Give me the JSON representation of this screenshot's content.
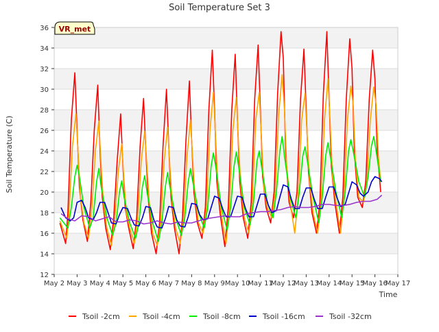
{
  "chart_data": {
    "type": "line",
    "title": "Soil Temperature Set 3",
    "xlabel": "Time",
    "ylabel": "Soil Temperature (C)",
    "site_label": "VR_met",
    "xlim": [
      2,
      17
    ],
    "ylim": [
      12,
      36
    ],
    "x_ticks": [
      {
        "x": 2,
        "label": "May 2"
      },
      {
        "x": 3,
        "label": "May 3"
      },
      {
        "x": 4,
        "label": "May 4"
      },
      {
        "x": 5,
        "label": "May 5"
      },
      {
        "x": 6,
        "label": "May 6"
      },
      {
        "x": 7,
        "label": "May 7"
      },
      {
        "x": 8,
        "label": "May 8"
      },
      {
        "x": 9,
        "label": "May 9"
      },
      {
        "x": 10,
        "label": "May 10"
      },
      {
        "x": 11,
        "label": "May 11"
      },
      {
        "x": 12,
        "label": "May 12"
      },
      {
        "x": 13,
        "label": "May 13"
      },
      {
        "x": 14,
        "label": "May 14"
      },
      {
        "x": 15,
        "label": "May 15"
      },
      {
        "x": 16,
        "label": "May 16"
      },
      {
        "x": 17,
        "label": "May 17"
      }
    ],
    "y_ticks": [
      12,
      14,
      16,
      18,
      20,
      22,
      24,
      26,
      28,
      30,
      32,
      34,
      36
    ],
    "grid": "horizontal bands",
    "legend_position": "bottom",
    "series": [
      {
        "name": "Tsoil -2cm",
        "color": "#ff0000",
        "x": [
          2.25,
          2.5,
          2.6,
          2.75,
          2.9,
          3.0,
          3.1,
          3.25,
          3.45,
          3.6,
          3.75,
          3.9,
          4.0,
          4.1,
          4.25,
          4.45,
          4.6,
          4.75,
          4.9,
          5.0,
          5.1,
          5.25,
          5.45,
          5.6,
          5.75,
          5.9,
          6.0,
          6.1,
          6.25,
          6.45,
          6.6,
          6.75,
          6.9,
          7.0,
          7.1,
          7.25,
          7.45,
          7.6,
          7.75,
          7.9,
          8.0,
          8.1,
          8.25,
          8.45,
          8.6,
          8.75,
          8.9,
          9.0,
          9.1,
          9.25,
          9.45,
          9.6,
          9.75,
          9.9,
          10.0,
          10.1,
          10.25,
          10.45,
          10.6,
          10.75,
          10.9,
          11.0,
          11.1,
          11.25,
          11.45,
          11.6,
          11.75,
          11.9,
          12.0,
          12.1,
          12.25,
          12.45,
          12.6,
          12.75,
          12.9,
          13.0,
          13.1,
          13.25,
          13.45,
          13.6,
          13.75,
          13.9,
          14.0,
          14.1,
          14.25,
          14.45,
          14.6,
          14.75,
          14.9,
          15.0,
          15.1,
          15.25,
          15.45,
          15.6,
          15.75,
          15.9,
          16.0,
          16.1,
          16.25
        ],
        "y": [
          17.0,
          15.0,
          18.0,
          27.0,
          31.6,
          26.0,
          20.5,
          17.3,
          15.2,
          19.0,
          26.0,
          30.4,
          24.0,
          19.5,
          16.5,
          14.4,
          17.5,
          23.0,
          27.6,
          22.5,
          18.5,
          16.5,
          14.5,
          17.5,
          24.5,
          29.1,
          24.0,
          19.5,
          16.0,
          14.0,
          17.0,
          24.5,
          30.0,
          24.5,
          19.5,
          16.5,
          14.0,
          17.5,
          25.0,
          30.8,
          25.0,
          20.0,
          17.0,
          15.5,
          18.5,
          28.0,
          33.8,
          28.0,
          21.0,
          17.8,
          14.7,
          18.5,
          28.0,
          33.4,
          27.0,
          21.0,
          17.5,
          15.5,
          19.0,
          29.0,
          34.3,
          28.0,
          21.5,
          18.5,
          17.0,
          20.0,
          29.5,
          35.6,
          33.0,
          24.0,
          19.0,
          17.5,
          20.0,
          29.0,
          33.9,
          28.0,
          22.0,
          18.0,
          16.0,
          19.0,
          29.5,
          35.6,
          29.0,
          22.5,
          19.0,
          16.0,
          19.5,
          29.0,
          34.9,
          32.0,
          24.0,
          19.5,
          18.5,
          21.0,
          29.0,
          33.8,
          31.0,
          24.0,
          20.0
        ]
      },
      {
        "name": "Tsoil -4cm",
        "color": "#ffa500",
        "x": [
          2.25,
          2.55,
          2.65,
          2.8,
          2.95,
          3.05,
          3.15,
          3.3,
          3.5,
          3.65,
          3.8,
          3.95,
          4.05,
          4.15,
          4.3,
          4.5,
          4.65,
          4.8,
          4.95,
          5.05,
          5.15,
          5.3,
          5.5,
          5.65,
          5.8,
          5.95,
          6.05,
          6.15,
          6.3,
          6.5,
          6.65,
          6.8,
          6.95,
          7.05,
          7.15,
          7.3,
          7.5,
          7.65,
          7.8,
          7.95,
          8.05,
          8.15,
          8.3,
          8.5,
          8.65,
          8.8,
          8.95,
          9.05,
          9.15,
          9.3,
          9.5,
          9.65,
          9.8,
          9.95,
          10.05,
          10.15,
          10.3,
          10.5,
          10.65,
          10.8,
          10.95,
          11.05,
          11.15,
          11.3,
          11.5,
          11.65,
          11.8,
          11.95,
          12.05,
          12.15,
          12.3,
          12.5,
          12.65,
          12.8,
          12.95,
          13.05,
          13.15,
          13.3,
          13.5,
          13.65,
          13.8,
          13.95,
          14.05,
          14.15,
          14.3,
          14.5,
          14.65,
          14.8,
          14.95,
          15.05,
          15.15,
          15.3,
          15.5,
          15.65,
          15.8,
          15.95,
          16.05,
          16.15,
          16.25
        ],
        "y": [
          17.2,
          15.5,
          18.0,
          24.5,
          27.6,
          23.5,
          19.5,
          17.0,
          15.5,
          18.5,
          24.0,
          26.9,
          22.5,
          19.0,
          16.5,
          14.8,
          17.5,
          22.0,
          24.7,
          21.0,
          18.0,
          16.5,
          15.0,
          17.5,
          23.0,
          25.9,
          22.5,
          19.0,
          16.0,
          14.8,
          17.0,
          23.0,
          26.3,
          22.5,
          19.0,
          16.5,
          15.0,
          17.5,
          23.5,
          27.0,
          23.0,
          19.5,
          17.0,
          16.0,
          18.5,
          26.0,
          29.7,
          25.0,
          20.5,
          17.8,
          15.0,
          18.5,
          26.0,
          29.2,
          24.5,
          20.5,
          17.5,
          16.0,
          19.0,
          27.0,
          29.7,
          25.0,
          20.5,
          18.5,
          17.5,
          20.0,
          27.5,
          31.4,
          28.0,
          22.5,
          19.0,
          16.0,
          19.5,
          27.0,
          29.6,
          25.0,
          21.0,
          18.0,
          16.0,
          19.0,
          27.0,
          31.0,
          26.5,
          21.5,
          19.0,
          16.0,
          19.5,
          27.0,
          30.3,
          28.5,
          23.0,
          19.5,
          19.0,
          21.0,
          27.0,
          30.2,
          28.5,
          23.5,
          21.0
        ]
      },
      {
        "name": "Tsoil -8cm",
        "color": "#00ee00",
        "x": [
          2.25,
          2.6,
          2.75,
          2.9,
          3.0,
          3.1,
          3.3,
          3.55,
          3.7,
          3.85,
          3.95,
          4.05,
          4.3,
          4.55,
          4.7,
          4.85,
          4.95,
          5.05,
          5.3,
          5.55,
          5.7,
          5.85,
          5.95,
          6.05,
          6.3,
          6.55,
          6.7,
          6.85,
          6.95,
          7.05,
          7.3,
          7.55,
          7.7,
          7.85,
          7.95,
          8.05,
          8.3,
          8.55,
          8.7,
          8.85,
          8.95,
          9.05,
          9.3,
          9.55,
          9.7,
          9.85,
          9.95,
          10.05,
          10.3,
          10.55,
          10.7,
          10.85,
          10.95,
          11.05,
          11.3,
          11.55,
          11.7,
          11.85,
          11.95,
          12.05,
          12.3,
          12.55,
          12.7,
          12.85,
          12.95,
          13.05,
          13.3,
          13.55,
          13.7,
          13.85,
          13.95,
          14.05,
          14.3,
          14.55,
          14.7,
          14.85,
          14.95,
          15.05,
          15.3,
          15.55,
          15.7,
          15.85,
          15.95,
          16.05,
          16.25
        ],
        "y": [
          17.5,
          16.5,
          18.5,
          21.5,
          22.6,
          21.5,
          18.5,
          16.5,
          17.5,
          21.0,
          22.3,
          20.5,
          17.5,
          15.8,
          17.0,
          20.0,
          21.1,
          19.5,
          17.0,
          15.5,
          17.0,
          20.5,
          21.6,
          20.0,
          17.0,
          15.2,
          17.0,
          20.5,
          21.9,
          20.5,
          17.5,
          15.8,
          17.5,
          21.0,
          22.3,
          21.0,
          18.0,
          16.5,
          18.5,
          22.5,
          23.8,
          22.5,
          18.5,
          16.3,
          18.5,
          22.5,
          23.9,
          22.5,
          18.5,
          16.8,
          19.0,
          23.0,
          24.0,
          22.5,
          19.0,
          17.5,
          20.0,
          24.0,
          25.4,
          23.5,
          19.5,
          17.5,
          20.0,
          23.5,
          24.4,
          23.0,
          19.5,
          17.0,
          19.5,
          23.5,
          24.8,
          23.5,
          20.0,
          17.5,
          20.0,
          24.0,
          25.1,
          24.0,
          21.0,
          19.5,
          21.5,
          24.5,
          25.4,
          24.0,
          21.0
        ]
      },
      {
        "name": "Tsoil -16cm",
        "color": "#0000cc",
        "x": [
          2.3,
          2.5,
          2.7,
          2.85,
          3.0,
          3.2,
          3.35,
          3.5,
          3.7,
          3.85,
          4.0,
          4.2,
          4.35,
          4.5,
          4.7,
          4.85,
          5.0,
          5.2,
          5.35,
          5.5,
          5.7,
          5.85,
          6.0,
          6.2,
          6.35,
          6.5,
          6.7,
          6.85,
          7.0,
          7.2,
          7.35,
          7.5,
          7.7,
          7.85,
          8.0,
          8.2,
          8.35,
          8.5,
          8.7,
          8.85,
          9.0,
          9.2,
          9.35,
          9.5,
          9.7,
          9.85,
          10.0,
          10.2,
          10.35,
          10.5,
          10.7,
          10.85,
          11.0,
          11.2,
          11.35,
          11.5,
          11.7,
          11.85,
          12.0,
          12.2,
          12.35,
          12.5,
          12.7,
          12.85,
          13.0,
          13.2,
          13.35,
          13.5,
          13.7,
          13.85,
          14.0,
          14.2,
          14.35,
          14.5,
          14.7,
          14.85,
          15.0,
          15.2,
          15.35,
          15.5,
          15.7,
          15.85,
          16.0,
          16.2,
          16.3
        ],
        "y": [
          18.5,
          17.5,
          17.2,
          17.5,
          19.0,
          19.2,
          18.5,
          17.5,
          17.3,
          18.0,
          19.0,
          19.0,
          18.0,
          17.0,
          16.9,
          17.8,
          18.5,
          18.4,
          17.5,
          16.8,
          16.7,
          17.5,
          18.6,
          18.5,
          17.3,
          16.6,
          16.5,
          17.4,
          18.6,
          18.5,
          17.3,
          16.7,
          16.6,
          17.6,
          18.9,
          18.8,
          17.8,
          17.3,
          17.4,
          18.5,
          19.6,
          19.4,
          18.4,
          17.6,
          17.6,
          18.6,
          19.6,
          19.5,
          18.4,
          17.6,
          17.6,
          18.7,
          19.8,
          19.8,
          18.7,
          18.0,
          18.2,
          19.5,
          20.7,
          20.5,
          19.3,
          18.4,
          18.4,
          19.5,
          20.4,
          20.4,
          19.3,
          18.4,
          18.4,
          19.5,
          20.5,
          20.5,
          19.4,
          18.6,
          18.8,
          19.9,
          21.0,
          20.7,
          19.9,
          19.6,
          20.0,
          21.0,
          21.5,
          21.3,
          21.0
        ]
      },
      {
        "name": "Tsoil -32cm",
        "color": "#9933cc",
        "x": [
          2.3,
          2.6,
          2.9,
          3.2,
          3.5,
          3.8,
          4.1,
          4.4,
          4.7,
          5.0,
          5.3,
          5.6,
          5.9,
          6.2,
          6.5,
          6.8,
          7.1,
          7.4,
          7.7,
          8.0,
          8.3,
          8.6,
          8.9,
          9.2,
          9.5,
          9.8,
          10.1,
          10.4,
          10.7,
          11.0,
          11.3,
          11.6,
          11.9,
          12.2,
          12.5,
          12.8,
          13.1,
          13.4,
          13.7,
          14.0,
          14.3,
          14.6,
          14.9,
          15.2,
          15.5,
          15.8,
          16.1,
          16.3
        ],
        "y": [
          17.9,
          17.4,
          17.2,
          17.7,
          17.6,
          17.2,
          17.4,
          17.6,
          17.1,
          17.1,
          17.3,
          17.2,
          16.9,
          17.0,
          17.2,
          17.0,
          16.9,
          17.1,
          17.0,
          17.0,
          17.2,
          17.4,
          17.5,
          17.6,
          17.7,
          17.6,
          17.6,
          17.9,
          18.0,
          18.1,
          18.1,
          18.2,
          18.3,
          18.5,
          18.6,
          18.5,
          18.5,
          18.6,
          18.8,
          18.8,
          18.7,
          18.7,
          18.8,
          19.0,
          19.1,
          19.1,
          19.3,
          19.7
        ]
      }
    ]
  }
}
